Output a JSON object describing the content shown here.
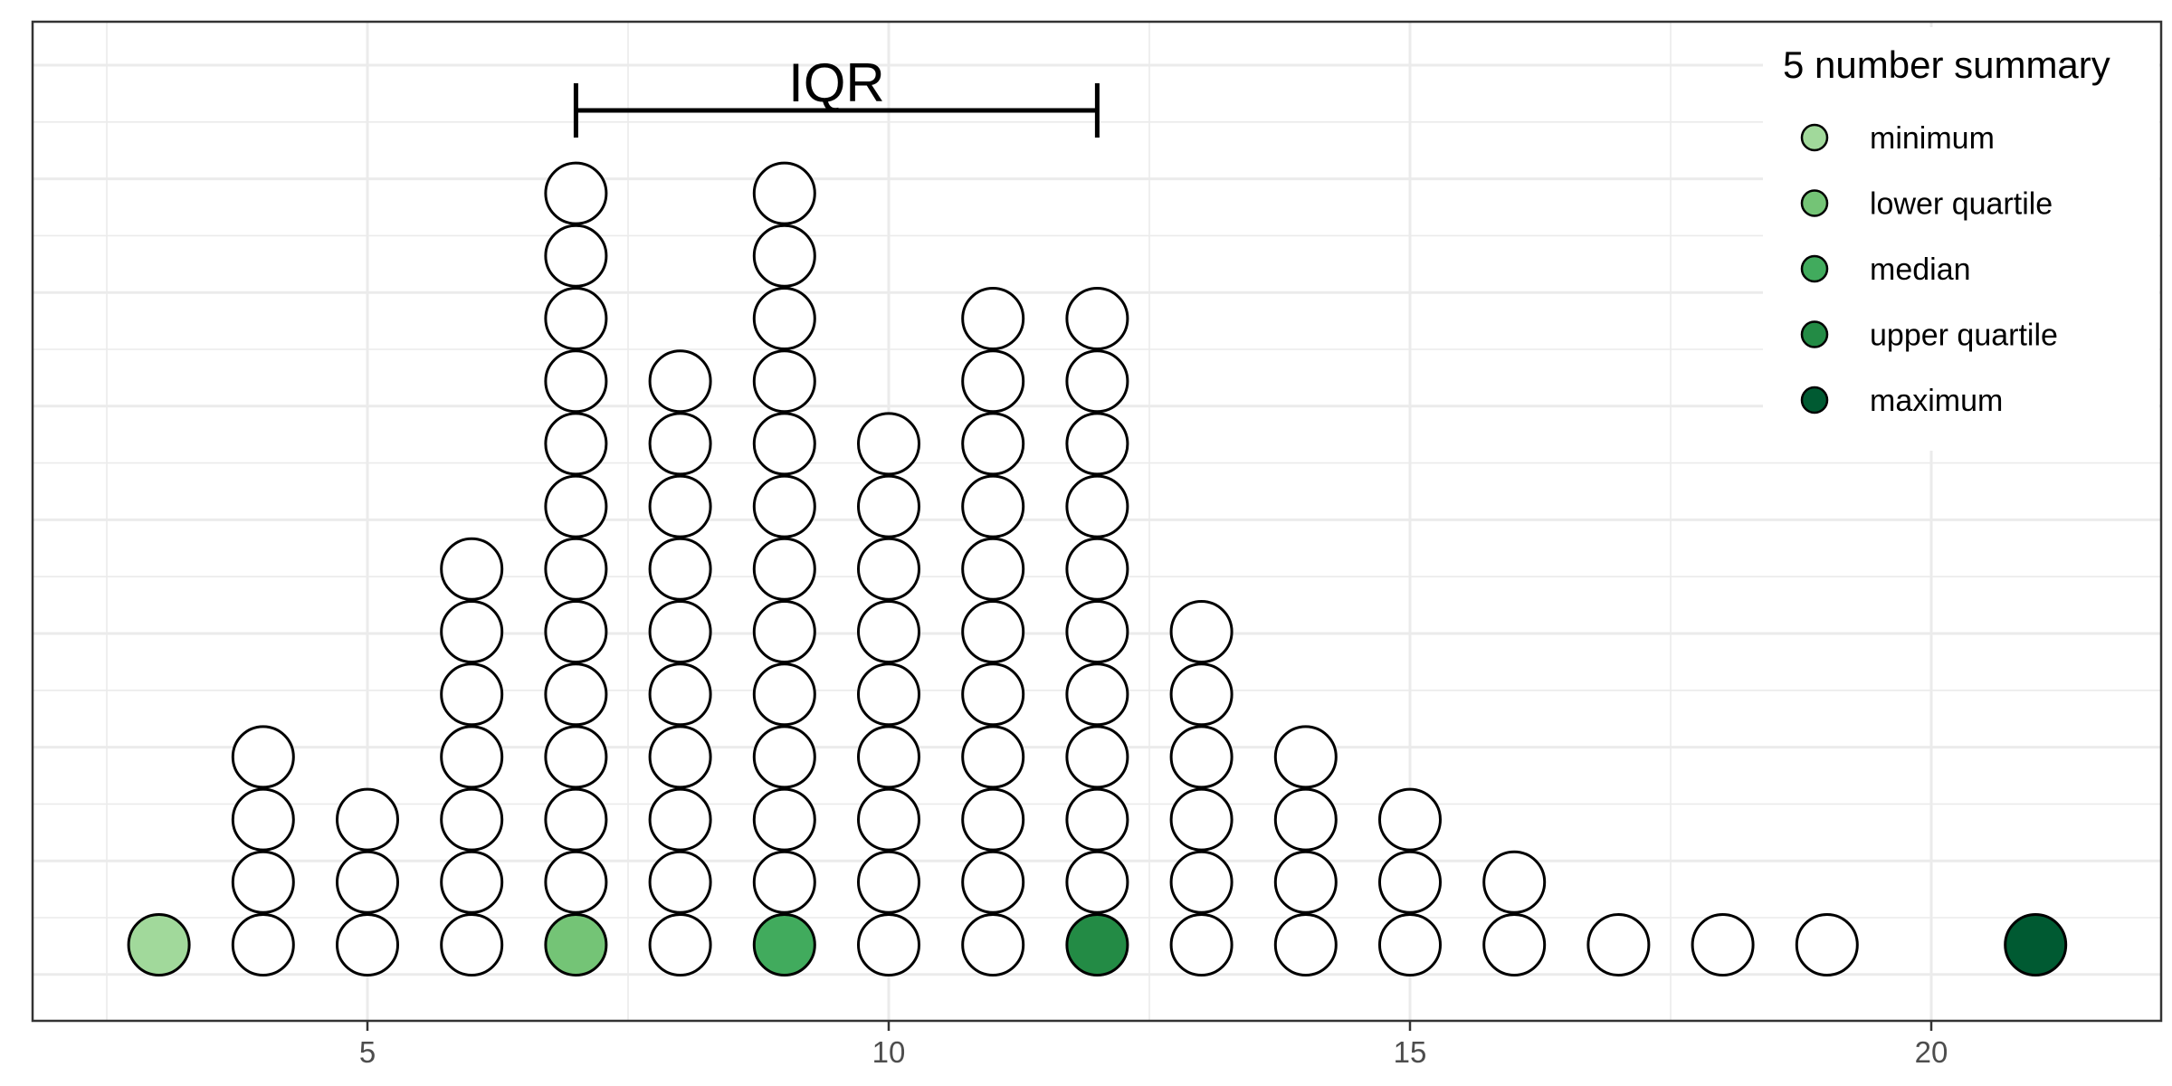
{
  "chart_data": {
    "type": "scatter",
    "subtype": "dot-plot",
    "title": "",
    "xlabel": "",
    "ylabel": "",
    "xlim": [
      2.5,
      22.3
    ],
    "x_ticks": [
      5,
      10,
      15,
      20
    ],
    "x_tick_labels": [
      "5",
      "10",
      "15",
      "20"
    ],
    "y_axis_shown": false,
    "grid": true,
    "counts": [
      {
        "x": 3,
        "count": 1
      },
      {
        "x": 4,
        "count": 4
      },
      {
        "x": 5,
        "count": 3
      },
      {
        "x": 6,
        "count": 7
      },
      {
        "x": 7,
        "count": 13
      },
      {
        "x": 8,
        "count": 10
      },
      {
        "x": 9,
        "count": 13
      },
      {
        "x": 10,
        "count": 9
      },
      {
        "x": 11,
        "count": 11
      },
      {
        "x": 12,
        "count": 11
      },
      {
        "x": 13,
        "count": 6
      },
      {
        "x": 14,
        "count": 4
      },
      {
        "x": 15,
        "count": 3
      },
      {
        "x": 16,
        "count": 2
      },
      {
        "x": 17,
        "count": 1
      },
      {
        "x": 18,
        "count": 1
      },
      {
        "x": 19,
        "count": 1
      },
      {
        "x": 21,
        "count": 1
      }
    ],
    "summary_points": [
      {
        "name": "minimum",
        "x": 3,
        "color": "#a1d99b"
      },
      {
        "name": "lower quartile",
        "x": 7,
        "color": "#74c476"
      },
      {
        "name": "median",
        "x": 9,
        "color": "#41ab5d"
      },
      {
        "name": "upper quartile",
        "x": 12,
        "color": "#238b45"
      },
      {
        "name": "maximum",
        "x": 21,
        "color": "#005a32"
      }
    ],
    "annotation": {
      "label": "IQR",
      "from": 7,
      "to": 12
    },
    "legend": {
      "title": "5 number summary",
      "position": "top-right",
      "items": [
        {
          "label": "minimum",
          "color": "#a1d99b"
        },
        {
          "label": "lower quartile",
          "color": "#74c476"
        },
        {
          "label": "median",
          "color": "#41ab5d"
        },
        {
          "label": "upper quartile",
          "color": "#238b45"
        },
        {
          "label": "maximum",
          "color": "#005a32"
        }
      ]
    },
    "colors": {
      "dot_fill": "#ffffff",
      "dot_stroke": "#000000",
      "grid": "#ebebeb",
      "panel_border": "#333333"
    }
  }
}
